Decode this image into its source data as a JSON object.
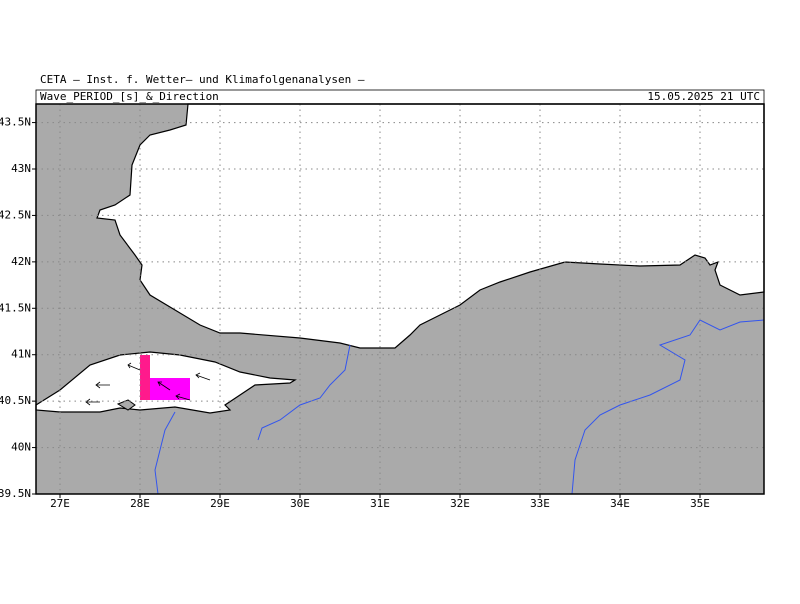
{
  "header": {
    "institute": "CETA – Inst. f. Wetter– und Klimafolgenanalysen –",
    "title": "Wave_PERIOD_[s]_&_Direction",
    "datetime": "15.05.2025 21 UTC"
  },
  "map": {
    "xlim": [
      26.7,
      35.8
    ],
    "ylim": [
      39.5,
      43.7
    ],
    "lat_ticks": [
      {
        "value": 39.5,
        "label": "39.5N"
      },
      {
        "value": 40,
        "label": "40N"
      },
      {
        "value": 40.5,
        "label": "40.5N"
      },
      {
        "value": 41,
        "label": "41N"
      },
      {
        "value": 41.5,
        "label": "41.5N"
      },
      {
        "value": 42,
        "label": "42N"
      },
      {
        "value": 42.5,
        "label": "42.5N"
      },
      {
        "value": 43,
        "label": "43N"
      },
      {
        "value": 43.5,
        "label": "43.5N"
      }
    ],
    "lon_ticks": [
      {
        "value": 27,
        "label": "27E"
      },
      {
        "value": 28,
        "label": "28E"
      },
      {
        "value": 29,
        "label": "29E"
      },
      {
        "value": 30,
        "label": "30E"
      },
      {
        "value": 31,
        "label": "31E"
      },
      {
        "value": 32,
        "label": "32E"
      },
      {
        "value": 33,
        "label": "33E"
      },
      {
        "value": 34,
        "label": "34E"
      },
      {
        "value": 35,
        "label": "35E"
      }
    ]
  }
}
